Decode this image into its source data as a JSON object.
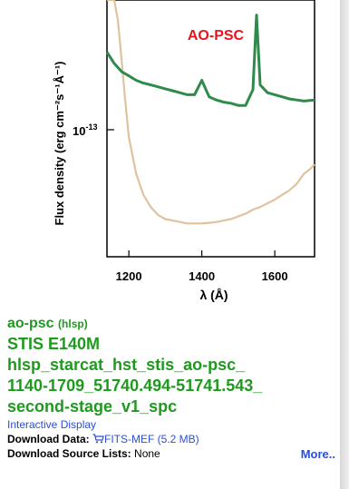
{
  "chart_data": {
    "type": "line",
    "title": "AO-PSC",
    "xlabel": "λ (Å)",
    "ylabel": "Flux density (erg cm⁻²s⁻¹Å⁻¹)",
    "xlim": [
      1140,
      1709
    ],
    "x_ticks": [
      1200,
      1400,
      1600
    ],
    "y_tick_label": "10",
    "y_tick_exp": "-13",
    "y_scale": "log",
    "series": [
      {
        "color": "#e0c29e",
        "x": [
          1140,
          1150,
          1160,
          1170,
          1180,
          1190,
          1200,
          1220,
          1240,
          1260,
          1280,
          1300,
          1320,
          1340,
          1360,
          1380,
          1400,
          1420,
          1440,
          1460,
          1480,
          1500,
          1520,
          1540,
          1560,
          1580,
          1600,
          1620,
          1640,
          1660,
          1680,
          1700,
          1709
        ],
        "y": [
          9e-13,
          5e-13,
          3e-13,
          2.2e-13,
          1.6e-13,
          1.15e-13,
          8.5e-14,
          6.3e-14,
          5.3e-14,
          4.8e-14,
          4.5e-14,
          4.35e-14,
          4.3e-14,
          4.25e-14,
          4.2e-14,
          4.2e-14,
          4.2e-14,
          4.22e-14,
          4.25e-14,
          4.3e-14,
          4.35e-14,
          4.45e-14,
          4.55e-14,
          4.7e-14,
          4.8e-14,
          4.95e-14,
          5.1e-14,
          5.3e-14,
          5.5e-14,
          5.8e-14,
          6.3e-14,
          6.6e-14,
          6.8e-14
        ]
      },
      {
        "color": "#2e8b4b",
        "x": [
          1140,
          1160,
          1180,
          1200,
          1220,
          1240,
          1260,
          1280,
          1300,
          1320,
          1340,
          1360,
          1380,
          1400,
          1420,
          1440,
          1460,
          1480,
          1500,
          1520,
          1540,
          1550,
          1560,
          1580,
          1600,
          1620,
          1640,
          1660,
          1680,
          1709
        ],
        "y": [
          1.7e-13,
          1.55e-13,
          1.45e-13,
          1.4e-13,
          1.35e-13,
          1.32e-13,
          1.3e-13,
          1.28e-13,
          1.26e-13,
          1.24e-13,
          1.22e-13,
          1.2e-13,
          1.2e-13,
          1.35e-13,
          1.18e-13,
          1.15e-13,
          1.13e-13,
          1.12e-13,
          1.1e-13,
          1.1e-13,
          1.25e-13,
          2.3e-13,
          1.3e-13,
          1.22e-13,
          1.2e-13,
          1.18e-13,
          1.16e-13,
          1.15e-13,
          1.14e-13,
          1.15e-13
        ]
      }
    ]
  },
  "info": {
    "name": "ao-psc",
    "name_suffix": "(hlsp)",
    "instrument": "STIS E140M",
    "filename_lines": [
      "hlsp_starcat_hst_stis_ao-psc_",
      "1140-1709_51740.494-51741.543_",
      "second-stage_v1_spc"
    ],
    "interactive_display": "Interactive Display",
    "download_data_label": "Download Data:",
    "download_data_link": "FITS-MEF (5.2 MB)",
    "download_source_label": "Download Source Lists:",
    "download_source_value": "None",
    "more_link": "More.."
  },
  "colors": {
    "green_text": "#1e9a1e",
    "link_blue": "#2a4fd6",
    "title_red": "#e8141c"
  }
}
